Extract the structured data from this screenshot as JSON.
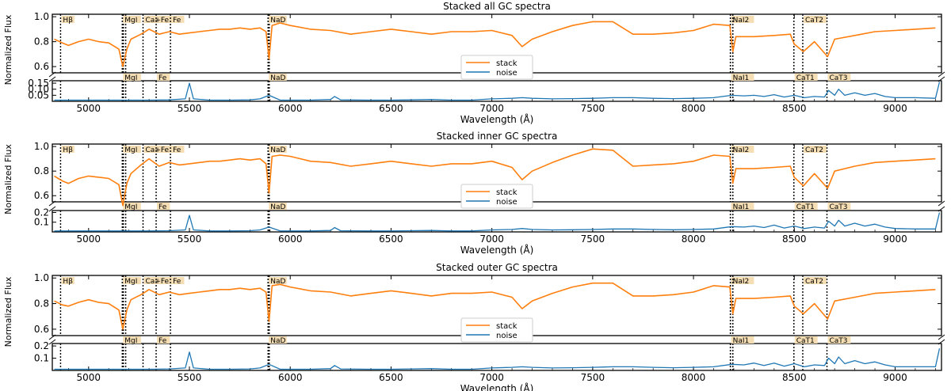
{
  "colors": {
    "stack": "#ff7f0e",
    "noise": "#1f77b4",
    "label_bg": "#f5deb3",
    "line_marker": "#000000"
  },
  "chart_data": [
    {
      "type": "line",
      "title": "Stacked all GC spectra",
      "xlabel": "Wavelength (Å)",
      "ylabel": "Normalized Flux",
      "xlim": [
        4820,
        9230
      ],
      "ylim_flux": [
        0.55,
        1.02
      ],
      "ylim_noise": [
        0.0,
        0.17
      ],
      "x_ticks": [
        "5000",
        "5500",
        "6000",
        "6500",
        "7000",
        "7500",
        "8000",
        "8500",
        "9000"
      ],
      "y_ticks_flux": [
        "0.6",
        "0.8",
        "1.0"
      ],
      "y_ticks_noise": [
        "0.05",
        "0.10",
        "0.15"
      ],
      "noise_tick_values": [
        0.05,
        0.1,
        0.15
      ],
      "legend": {
        "position": "center",
        "entries": [
          "stack",
          "noise"
        ]
      },
      "series": [
        {
          "name": "stack",
          "x": [
            4830,
            4870,
            4900,
            4950,
            5000,
            5050,
            5100,
            5150,
            5170,
            5190,
            5210,
            5260,
            5300,
            5350,
            5400,
            5450,
            5500,
            5550,
            5600,
            5650,
            5700,
            5750,
            5800,
            5850,
            5880,
            5895,
            5910,
            5950,
            6000,
            6100,
            6200,
            6300,
            6400,
            6500,
            6600,
            6700,
            6800,
            6900,
            7000,
            7100,
            7150,
            7200,
            7300,
            7400,
            7500,
            7600,
            7700,
            7800,
            7900,
            8000,
            8100,
            8180,
            8195,
            8210,
            8300,
            8400,
            8480,
            8500,
            8545,
            8600,
            8665,
            8700,
            8800,
            8900,
            9000,
            9100,
            9200
          ],
          "values": [
            0.82,
            0.79,
            0.77,
            0.8,
            0.82,
            0.8,
            0.79,
            0.74,
            0.6,
            0.74,
            0.82,
            0.86,
            0.9,
            0.86,
            0.88,
            0.86,
            0.87,
            0.88,
            0.89,
            0.9,
            0.9,
            0.91,
            0.9,
            0.91,
            0.88,
            0.66,
            0.93,
            0.95,
            0.93,
            0.9,
            0.89,
            0.86,
            0.88,
            0.9,
            0.88,
            0.86,
            0.88,
            0.88,
            0.89,
            0.85,
            0.76,
            0.82,
            0.88,
            0.93,
            0.96,
            0.96,
            0.86,
            0.86,
            0.87,
            0.89,
            0.94,
            0.93,
            0.72,
            0.84,
            0.84,
            0.85,
            0.86,
            0.78,
            0.72,
            0.8,
            0.68,
            0.82,
            0.85,
            0.88,
            0.89,
            0.9,
            0.91
          ]
        },
        {
          "name": "noise",
          "x": [
            4830,
            4900,
            5000,
            5100,
            5200,
            5300,
            5400,
            5480,
            5500,
            5520,
            5600,
            5700,
            5800,
            5850,
            5895,
            5950,
            6100,
            6200,
            6220,
            6250,
            6400,
            6500,
            6600,
            6700,
            6800,
            6900,
            7000,
            7100,
            7150,
            7200,
            7300,
            7400,
            7500,
            7600,
            7700,
            7800,
            7900,
            8000,
            8100,
            8190,
            8250,
            8300,
            8350,
            8400,
            8450,
            8500,
            8550,
            8600,
            8650,
            8670,
            8700,
            8720,
            8750,
            8800,
            8850,
            8900,
            8950,
            9000,
            9100,
            9200,
            9220
          ],
          "values": [
            0.01,
            0.01,
            0.01,
            0.01,
            0.01,
            0.01,
            0.012,
            0.02,
            0.15,
            0.02,
            0.01,
            0.01,
            0.012,
            0.02,
            0.05,
            0.01,
            0.01,
            0.015,
            0.04,
            0.012,
            0.01,
            0.01,
            0.012,
            0.015,
            0.01,
            0.01,
            0.02,
            0.025,
            0.03,
            0.025,
            0.02,
            0.022,
            0.025,
            0.03,
            0.03,
            0.025,
            0.022,
            0.025,
            0.03,
            0.05,
            0.045,
            0.05,
            0.04,
            0.055,
            0.035,
            0.05,
            0.03,
            0.04,
            0.035,
            0.09,
            0.05,
            0.1,
            0.05,
            0.07,
            0.05,
            0.065,
            0.04,
            0.03,
            0.03,
            0.025,
            0.16
          ]
        }
      ]
    },
    {
      "type": "line",
      "title": "Stacked inner GC spectra",
      "xlabel": "Wavelength (Å)",
      "ylabel": "Normalized Flux",
      "xlim": [
        4820,
        9230
      ],
      "ylim_flux": [
        0.55,
        1.02
      ],
      "ylim_noise": [
        0.0,
        0.22
      ],
      "x_ticks": [
        "5000",
        "5500",
        "6000",
        "6500",
        "7000",
        "7500",
        "8000",
        "8500",
        "9000"
      ],
      "y_ticks_flux": [
        "0.6",
        "0.8",
        "1.0"
      ],
      "y_ticks_noise": [
        "0.1",
        "0.2"
      ],
      "noise_tick_values": [
        0.1,
        0.2
      ],
      "legend": {
        "position": "center",
        "entries": [
          "stack",
          "noise"
        ]
      },
      "series": [
        {
          "name": "stack",
          "x": [
            4830,
            4870,
            4900,
            4950,
            5000,
            5050,
            5100,
            5150,
            5170,
            5190,
            5210,
            5260,
            5300,
            5350,
            5400,
            5450,
            5500,
            5550,
            5600,
            5650,
            5700,
            5750,
            5800,
            5850,
            5880,
            5895,
            5910,
            5950,
            6000,
            6100,
            6200,
            6300,
            6400,
            6500,
            6600,
            6700,
            6800,
            6900,
            7000,
            7100,
            7150,
            7200,
            7300,
            7400,
            7500,
            7600,
            7700,
            7800,
            7900,
            8000,
            8100,
            8180,
            8195,
            8210,
            8300,
            8400,
            8480,
            8500,
            8545,
            8600,
            8665,
            8700,
            8800,
            8900,
            9000,
            9100,
            9200
          ],
          "values": [
            0.76,
            0.72,
            0.7,
            0.74,
            0.76,
            0.75,
            0.74,
            0.69,
            0.52,
            0.7,
            0.78,
            0.85,
            0.9,
            0.84,
            0.87,
            0.85,
            0.86,
            0.87,
            0.88,
            0.88,
            0.89,
            0.9,
            0.89,
            0.9,
            0.86,
            0.62,
            0.92,
            0.93,
            0.92,
            0.88,
            0.87,
            0.84,
            0.86,
            0.88,
            0.86,
            0.84,
            0.86,
            0.86,
            0.88,
            0.83,
            0.73,
            0.8,
            0.87,
            0.93,
            0.98,
            0.97,
            0.84,
            0.85,
            0.86,
            0.88,
            0.93,
            0.92,
            0.7,
            0.82,
            0.82,
            0.83,
            0.84,
            0.75,
            0.68,
            0.78,
            0.66,
            0.8,
            0.84,
            0.87,
            0.88,
            0.89,
            0.9
          ]
        },
        {
          "name": "noise",
          "x": [
            4830,
            4900,
            5000,
            5100,
            5200,
            5300,
            5400,
            5480,
            5500,
            5520,
            5600,
            5700,
            5800,
            5850,
            5895,
            5950,
            6100,
            6200,
            6220,
            6250,
            6400,
            6500,
            6600,
            6700,
            6800,
            6900,
            7000,
            7100,
            7150,
            7200,
            7300,
            7400,
            7500,
            7600,
            7700,
            7800,
            7900,
            8000,
            8100,
            8190,
            8250,
            8300,
            8350,
            8400,
            8450,
            8500,
            8550,
            8600,
            8650,
            8670,
            8700,
            8720,
            8750,
            8800,
            8850,
            8900,
            8950,
            9000,
            9100,
            9200,
            9220
          ],
          "values": [
            0.01,
            0.01,
            0.01,
            0.01,
            0.01,
            0.01,
            0.012,
            0.02,
            0.17,
            0.02,
            0.01,
            0.01,
            0.012,
            0.02,
            0.05,
            0.01,
            0.01,
            0.015,
            0.045,
            0.012,
            0.01,
            0.01,
            0.012,
            0.015,
            0.01,
            0.01,
            0.02,
            0.025,
            0.035,
            0.025,
            0.02,
            0.022,
            0.025,
            0.03,
            0.03,
            0.025,
            0.022,
            0.025,
            0.03,
            0.055,
            0.05,
            0.06,
            0.045,
            0.07,
            0.04,
            0.06,
            0.035,
            0.05,
            0.04,
            0.11,
            0.06,
            0.12,
            0.06,
            0.09,
            0.06,
            0.08,
            0.05,
            0.035,
            0.03,
            0.03,
            0.2
          ]
        }
      ]
    },
    {
      "type": "line",
      "title": "Stacked outer GC spectra",
      "xlabel": "Wavelength (Å)",
      "ylabel": "Normalized Flux",
      "xlim": [
        4820,
        9230
      ],
      "ylim_flux": [
        0.55,
        1.02
      ],
      "ylim_noise": [
        0.0,
        0.22
      ],
      "x_ticks": [
        "5000",
        "5500",
        "6000",
        "6500",
        "7000",
        "7500",
        "8000",
        "8500",
        "9000"
      ],
      "y_ticks_flux": [
        "0.6",
        "0.8",
        "1.0"
      ],
      "y_ticks_noise": [
        "0.1",
        "0.2"
      ],
      "noise_tick_values": [
        0.1,
        0.2
      ],
      "legend": {
        "position": "center",
        "entries": [
          "stack",
          "noise"
        ]
      },
      "series": [
        {
          "name": "stack",
          "x": [
            4830,
            4870,
            4900,
            4950,
            5000,
            5050,
            5100,
            5150,
            5170,
            5190,
            5210,
            5260,
            5300,
            5350,
            5400,
            5450,
            5500,
            5550,
            5600,
            5650,
            5700,
            5750,
            5800,
            5850,
            5880,
            5895,
            5910,
            5950,
            6000,
            6100,
            6200,
            6300,
            6400,
            6500,
            6600,
            6700,
            6800,
            6900,
            7000,
            7100,
            7150,
            7200,
            7300,
            7400,
            7500,
            7600,
            7700,
            7800,
            7900,
            8000,
            8100,
            8180,
            8195,
            8210,
            8300,
            8400,
            8480,
            8500,
            8545,
            8600,
            8665,
            8700,
            8800,
            8900,
            9000,
            9100,
            9200
          ],
          "values": [
            0.82,
            0.79,
            0.78,
            0.81,
            0.83,
            0.81,
            0.8,
            0.75,
            0.6,
            0.75,
            0.83,
            0.87,
            0.91,
            0.87,
            0.89,
            0.87,
            0.88,
            0.89,
            0.9,
            0.91,
            0.91,
            0.92,
            0.91,
            0.92,
            0.89,
            0.66,
            0.94,
            0.95,
            0.93,
            0.9,
            0.89,
            0.86,
            0.88,
            0.9,
            0.88,
            0.86,
            0.88,
            0.88,
            0.89,
            0.85,
            0.76,
            0.82,
            0.88,
            0.93,
            0.96,
            0.96,
            0.86,
            0.86,
            0.87,
            0.89,
            0.94,
            0.93,
            0.72,
            0.84,
            0.84,
            0.85,
            0.86,
            0.78,
            0.72,
            0.8,
            0.68,
            0.82,
            0.85,
            0.88,
            0.89,
            0.9,
            0.91
          ]
        },
        {
          "name": "noise",
          "x": [
            4830,
            4900,
            5000,
            5100,
            5200,
            5300,
            5400,
            5480,
            5500,
            5520,
            5600,
            5700,
            5800,
            5850,
            5895,
            5950,
            6100,
            6200,
            6220,
            6250,
            6400,
            6500,
            6600,
            6700,
            6800,
            6900,
            7000,
            7100,
            7150,
            7200,
            7300,
            7400,
            7500,
            7600,
            7700,
            7800,
            7900,
            8000,
            8100,
            8190,
            8250,
            8300,
            8350,
            8400,
            8450,
            8500,
            8550,
            8600,
            8650,
            8670,
            8700,
            8720,
            8750,
            8800,
            8850,
            8900,
            8950,
            9000,
            9100,
            9200,
            9220
          ],
          "values": [
            0.01,
            0.01,
            0.01,
            0.01,
            0.01,
            0.01,
            0.012,
            0.02,
            0.15,
            0.02,
            0.01,
            0.01,
            0.012,
            0.02,
            0.05,
            0.01,
            0.01,
            0.015,
            0.04,
            0.012,
            0.01,
            0.01,
            0.012,
            0.015,
            0.01,
            0.01,
            0.02,
            0.025,
            0.03,
            0.025,
            0.02,
            0.022,
            0.025,
            0.03,
            0.03,
            0.025,
            0.022,
            0.025,
            0.03,
            0.05,
            0.045,
            0.06,
            0.04,
            0.06,
            0.035,
            0.055,
            0.03,
            0.045,
            0.04,
            0.1,
            0.055,
            0.11,
            0.055,
            0.08,
            0.055,
            0.07,
            0.045,
            0.03,
            0.03,
            0.03,
            0.18
          ]
        }
      ]
    }
  ],
  "spectral_lines": [
    {
      "label": "Hβ",
      "x": [
        4861
      ],
      "position": "top"
    },
    {
      "label": "MgI",
      "x": [
        5167,
        5173,
        5184
      ],
      "position": "both"
    },
    {
      "label": "Ca+Fe",
      "x": [
        5270
      ],
      "position": "top"
    },
    {
      "label": "Fe",
      "x": [
        5335
      ],
      "position": "bottom"
    },
    {
      "label": "Fe",
      "x": [
        5406
      ],
      "position": "top"
    },
    {
      "label": "NaD",
      "x": [
        5890,
        5896
      ],
      "position": "both"
    },
    {
      "label": "NaI2",
      "x": [
        8183,
        8195
      ],
      "position": "top"
    },
    {
      "label": "NaI1",
      "x": [
        8183,
        8195
      ],
      "position": "bottom"
    },
    {
      "label": "CaT1",
      "x": [
        8498
      ],
      "position": "bottom"
    },
    {
      "label": "CaT2",
      "x": [
        8542
      ],
      "position": "top"
    },
    {
      "label": "CaT3",
      "x": [
        8662
      ],
      "position": "bottom"
    }
  ]
}
